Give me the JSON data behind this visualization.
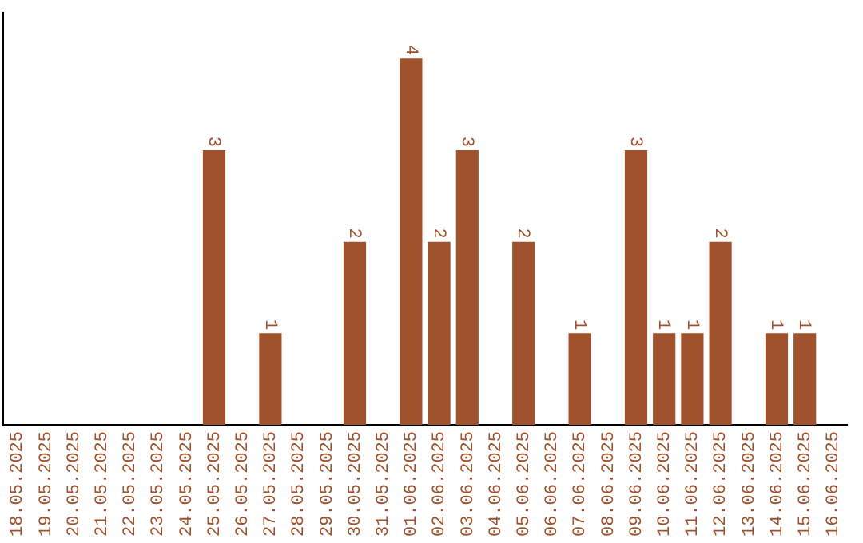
{
  "chart_data": {
    "type": "bar",
    "categories": [
      "18.05.2025",
      "19.05.2025",
      "20.05.2025",
      "21.05.2025",
      "22.05.2025",
      "23.05.2025",
      "24.05.2025",
      "25.05.2025",
      "26.05.2025",
      "27.05.2025",
      "28.05.2025",
      "29.05.2025",
      "30.05.2025",
      "31.05.2025",
      "01.06.2025",
      "02.06.2025",
      "03.06.2025",
      "04.06.2025",
      "05.06.2025",
      "06.06.2025",
      "07.06.2025",
      "08.06.2025",
      "09.06.2025",
      "10.06.2025",
      "11.06.2025",
      "12.06.2025",
      "13.06.2025",
      "14.06.2025",
      "15.06.2025",
      "16.06.2025"
    ],
    "values": [
      0,
      0,
      0,
      0,
      0,
      0,
      0,
      3,
      0,
      1,
      0,
      0,
      2,
      0,
      4,
      2,
      3,
      0,
      2,
      0,
      1,
      0,
      3,
      1,
      1,
      2,
      0,
      1,
      1,
      0
    ],
    "value_labels": [
      null,
      null,
      null,
      null,
      null,
      null,
      null,
      "3",
      null,
      "1",
      null,
      null,
      "2",
      null,
      "4",
      "2",
      "3",
      null,
      "2",
      null,
      "1",
      null,
      "3",
      "1",
      "1",
      "2",
      null,
      "1",
      "1",
      null
    ],
    "color": "#a0522d",
    "grid": false,
    "legend": false,
    "tick_labels": "x"
  }
}
